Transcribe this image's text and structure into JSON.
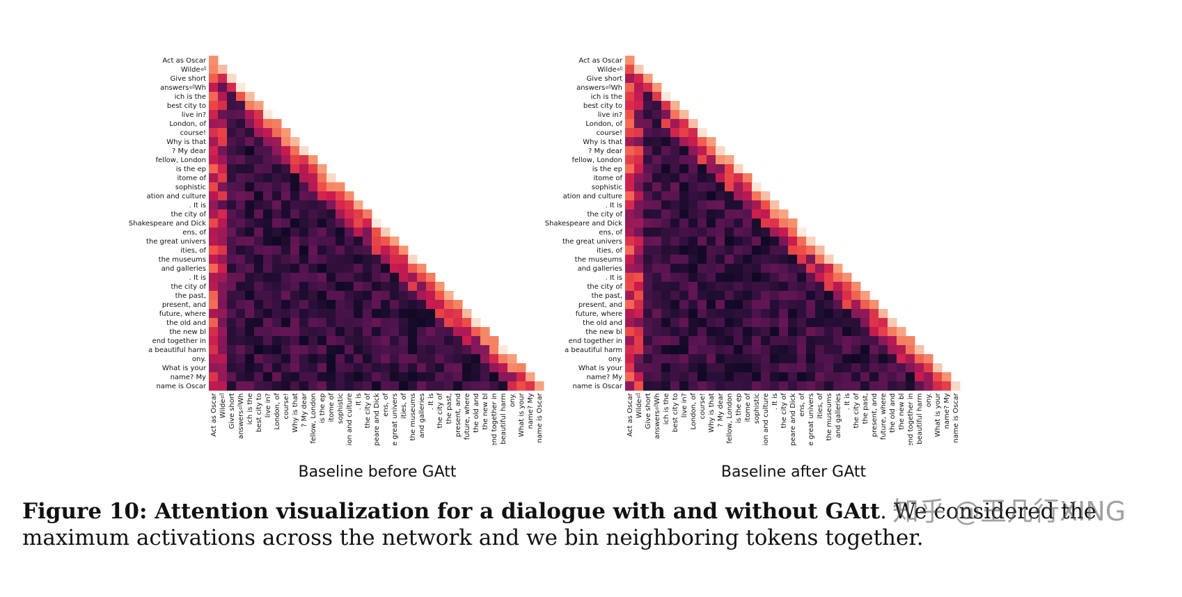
{
  "figure": {
    "caption_bold": "Figure 10: Attention visualization for a dialogue with and without GAtt",
    "caption_rest": ". We considered the maximum activations across the network and we bin neighboring tokens together.",
    "watermark": "知乎 @王几行XING"
  },
  "chart_data": [
    {
      "type": "heatmap",
      "title": "Baseline before GAtt",
      "tokens": [
        "Act as Oscar",
        "Wilde⏎",
        "Give short",
        "answers⏎Wh",
        "ich is the",
        "best city to",
        "live in?",
        "London, of",
        "course!",
        "Why is that",
        "? My dear",
        "fellow, London",
        "is the ep",
        "itome of",
        "sophistic",
        "ation and culture",
        ". It is",
        "the city of",
        "Shakespeare and Dick",
        "ens, of",
        "the great univers",
        "ities, of",
        "the museums",
        "and galleries",
        ". It is",
        "the city of",
        "the past,",
        "present, and",
        "future, where",
        "the old and",
        "the new bl",
        "end together in",
        "a beautiful harm",
        "ony.",
        "What is your",
        "name? My",
        "name is Oscar"
      ],
      "mask": "upper triangle hidden",
      "colormap": "rocket",
      "value_range": [
        0,
        1
      ],
      "seed": 7
    },
    {
      "type": "heatmap",
      "title": "Baseline after GAtt",
      "tokens": [
        "Act as Oscar",
        "Wilde⏎",
        "Give short",
        "answers⏎Wh",
        "ich is the",
        "best city to",
        "live in?",
        "London, of",
        "course!",
        "Why is that",
        "? My dear",
        "fellow, London",
        "is the ep",
        "itome of",
        "sophistic",
        "ation and culture",
        ". It is",
        "the city of",
        "Shakespeare and Dick",
        "ens, of",
        "the great univers",
        "ities, of",
        "the museums",
        "and galleries",
        ". It is",
        "the city of",
        "the past,",
        "present, and",
        "future, where",
        "the old and",
        "the new bl",
        "end together in",
        "a beautiful harm",
        "ony.",
        "What is your",
        "name? My",
        "name is Oscar"
      ],
      "mask": "upper triangle hidden",
      "colormap": "rocket",
      "value_range": [
        0,
        1
      ],
      "seed": 13
    }
  ]
}
